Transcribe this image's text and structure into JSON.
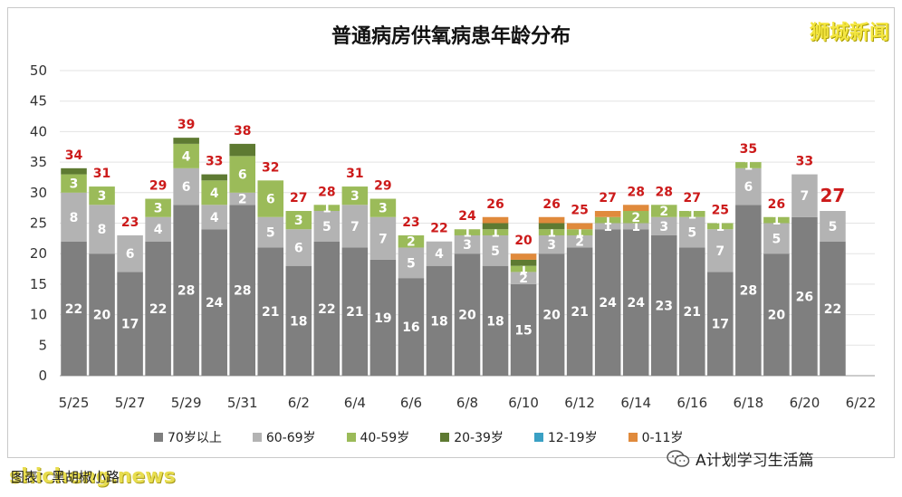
{
  "header": {
    "title": "普通病房供氧病患年龄分布",
    "brand": "狮城新闻"
  },
  "footer": {
    "credit": "图表：黑胡椒小路",
    "credit_watermark": "shicheng.news",
    "wechat": "A计划学习生活篇"
  },
  "colors": {
    "70+": "#7f7f7f",
    "60-69": "#b3b3b3",
    "40-59": "#9bbb59",
    "20-39": "#5e7a32",
    "12-19": "#3aa0c4",
    "0-11": "#e08a3c",
    "total_label": "#cc1a1a"
  },
  "chart_data": {
    "type": "bar",
    "stacked": true,
    "title": "普通病房供氧病患年龄分布",
    "ylim": [
      0,
      50
    ],
    "yticks": [
      0,
      5,
      10,
      15,
      20,
      25,
      30,
      35,
      40,
      45,
      50
    ],
    "xtick_labels": [
      "5/25",
      "5/27",
      "5/29",
      "5/31",
      "6/2",
      "6/4",
      "6/6",
      "6/8",
      "6/10",
      "6/12",
      "6/14",
      "6/16",
      "6/18",
      "6/20",
      "6/22"
    ],
    "categories": [
      "5/25",
      "5/26",
      "5/27",
      "5/28",
      "5/29",
      "5/30",
      "5/31",
      "6/1",
      "6/2",
      "6/3",
      "6/4",
      "6/5",
      "6/6",
      "6/7",
      "6/8",
      "6/9",
      "6/10",
      "6/11",
      "6/12",
      "6/13",
      "6/14",
      "6/15",
      "6/16",
      "6/17",
      "6/18",
      "6/19",
      "6/20",
      "6/21",
      "6/22"
    ],
    "legend_position": "bottom",
    "series": [
      {
        "name": "70岁以上",
        "values": [
          22,
          20,
          17,
          22,
          28,
          24,
          28,
          21,
          18,
          22,
          21,
          19,
          16,
          18,
          20,
          18,
          15,
          20,
          21,
          24,
          24,
          23,
          21,
          17,
          28,
          20,
          26,
          22,
          0
        ]
      },
      {
        "name": "60-69岁",
        "values": [
          8,
          8,
          6,
          4,
          6,
          4,
          2,
          5,
          6,
          5,
          7,
          7,
          5,
          4,
          3,
          5,
          2,
          3,
          2,
          1,
          1,
          3,
          5,
          7,
          6,
          5,
          7,
          5,
          0
        ]
      },
      {
        "name": "40-59岁",
        "values": [
          3,
          3,
          0,
          3,
          4,
          4,
          6,
          6,
          3,
          1,
          3,
          3,
          2,
          0,
          1,
          1,
          1,
          1,
          1,
          1,
          2,
          2,
          1,
          1,
          1,
          1,
          0,
          0,
          0
        ]
      },
      {
        "name": "20-39岁",
        "values": [
          1,
          0,
          0,
          0,
          1,
          1,
          2,
          0,
          0,
          0,
          0,
          0,
          0,
          0,
          0,
          1,
          1,
          1,
          0,
          0,
          0,
          0,
          0,
          0,
          0,
          0,
          0,
          0,
          0
        ]
      },
      {
        "name": "12-19岁",
        "values": [
          0,
          0,
          0,
          0,
          0,
          0,
          0,
          0,
          0,
          0,
          0,
          0,
          0,
          0,
          0,
          0,
          0,
          0,
          0,
          0,
          0,
          0,
          0,
          0,
          0,
          0,
          0,
          0,
          0
        ]
      },
      {
        "name": "0-11岁",
        "values": [
          0,
          0,
          0,
          0,
          0,
          0,
          0,
          0,
          0,
          0,
          0,
          0,
          0,
          0,
          0,
          1,
          1,
          1,
          1,
          1,
          1,
          0,
          0,
          0,
          0,
          0,
          0,
          0,
          0
        ]
      }
    ],
    "totals": [
      34,
      31,
      23,
      29,
      39,
      33,
      38,
      32,
      27,
      28,
      31,
      29,
      23,
      22,
      24,
      26,
      20,
      26,
      25,
      27,
      28,
      28,
      27,
      25,
      35,
      26,
      33,
      27,
      null
    ]
  }
}
